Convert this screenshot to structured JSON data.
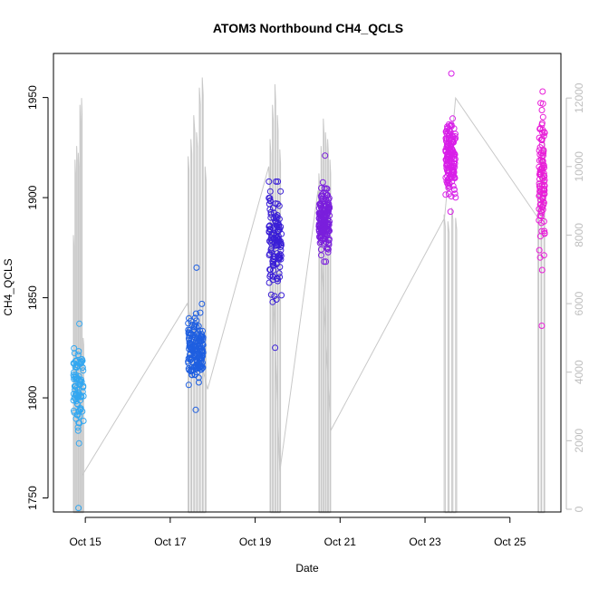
{
  "chart_data": {
    "type": "scatter",
    "title": "ATOM3 Northbound CH4_QCLS",
    "xlabel": "Date",
    "ylabel": "CH4_QCLS",
    "ylim": [
      1743,
      1972
    ],
    "y_ticks": [
      1750,
      1800,
      1850,
      1900,
      1950
    ],
    "x_ticks": [
      {
        "day": 15,
        "label": "Oct 15"
      },
      {
        "day": 17,
        "label": "Oct 17"
      },
      {
        "day": 19,
        "label": "Oct 19"
      },
      {
        "day": 21,
        "label": "Oct 21"
      },
      {
        "day": 23,
        "label": "Oct 23"
      },
      {
        "day": 25,
        "label": "Oct 25"
      }
    ],
    "xlim_days": [
      14.25,
      26.2
    ],
    "secondary_axis": {
      "side": "right",
      "ylim": [
        -80,
        13300
      ],
      "ticks": [
        0,
        2000,
        4000,
        6000,
        8000,
        10000,
        12000
      ],
      "color": "#bebebe"
    },
    "grid": false,
    "legend": "none",
    "marker": "open-circle",
    "flights": [
      {
        "t0": 14.72,
        "t1": 14.96,
        "y_min": 1745,
        "y_max": 1837,
        "y_center": 1805,
        "spread": 14,
        "n": 95,
        "color": "#33a7f0"
      },
      {
        "t0": 17.42,
        "t1": 17.78,
        "y_min": 1794,
        "y_max": 1865,
        "y_center": 1824,
        "spread": 11,
        "n": 170,
        "color": "#1f5fe0"
      },
      {
        "t0": 19.32,
        "t1": 19.62,
        "y_min": 1825,
        "y_max": 1908,
        "y_center": 1878,
        "spread": 18,
        "n": 130,
        "color": "#3a1fd6"
      },
      {
        "t0": 20.5,
        "t1": 20.75,
        "y_min": 1868,
        "y_max": 1921,
        "y_center": 1888,
        "spread": 10,
        "n": 175,
        "color": "#7a1fdc"
      },
      {
        "t0": 23.48,
        "t1": 23.72,
        "y_min": 1893,
        "y_max": 1962,
        "y_center": 1920,
        "spread": 13,
        "n": 160,
        "color": "#d81fe8"
      },
      {
        "t0": 25.68,
        "t1": 25.82,
        "y_min": 1836,
        "y_max": 1953,
        "y_center": 1910,
        "spread": 22,
        "n": 110,
        "color": "#e81fd8"
      }
    ],
    "altitude_trace": {
      "color": "#c8c8c8",
      "transits": [
        {
          "t": 14.93,
          "alt": 1000
        },
        {
          "t": 17.4,
          "alt": 6000
        },
        {
          "t": 17.88,
          "alt": 3500
        },
        {
          "t": 19.32,
          "alt": 10000
        },
        {
          "t": 19.58,
          "alt": 1100
        },
        {
          "t": 20.48,
          "alt": 9300
        },
        {
          "t": 20.78,
          "alt": 2300
        },
        {
          "t": 23.46,
          "alt": 8500
        },
        {
          "t": 23.72,
          "alt": 12000
        },
        {
          "t": 25.66,
          "alt": 8500
        }
      ],
      "spikes": [
        {
          "t0": 14.72,
          "t1": 14.95,
          "peaks": [
            8000,
            10200,
            10600,
            10400,
            11800,
            12000,
            5000
          ]
        },
        {
          "t0": 17.42,
          "t1": 17.82,
          "peaks": [
            10300,
            10800,
            11500,
            11000,
            12300,
            12600,
            10000
          ]
        },
        {
          "t0": 19.35,
          "t1": 19.58,
          "peaks": [
            10800,
            11800,
            12400,
            11500,
            10500
          ]
        },
        {
          "t0": 20.5,
          "t1": 20.76,
          "peaks": [
            9800,
            10600,
            11400,
            11000,
            10800,
            10200
          ]
        },
        {
          "t0": 23.45,
          "t1": 23.72,
          "peaks": [
            8600,
            8400,
            8800,
            8500
          ]
        },
        {
          "t0": 25.66,
          "t1": 25.8,
          "peaks": [
            9600,
            10400,
            11000
          ]
        }
      ]
    }
  }
}
